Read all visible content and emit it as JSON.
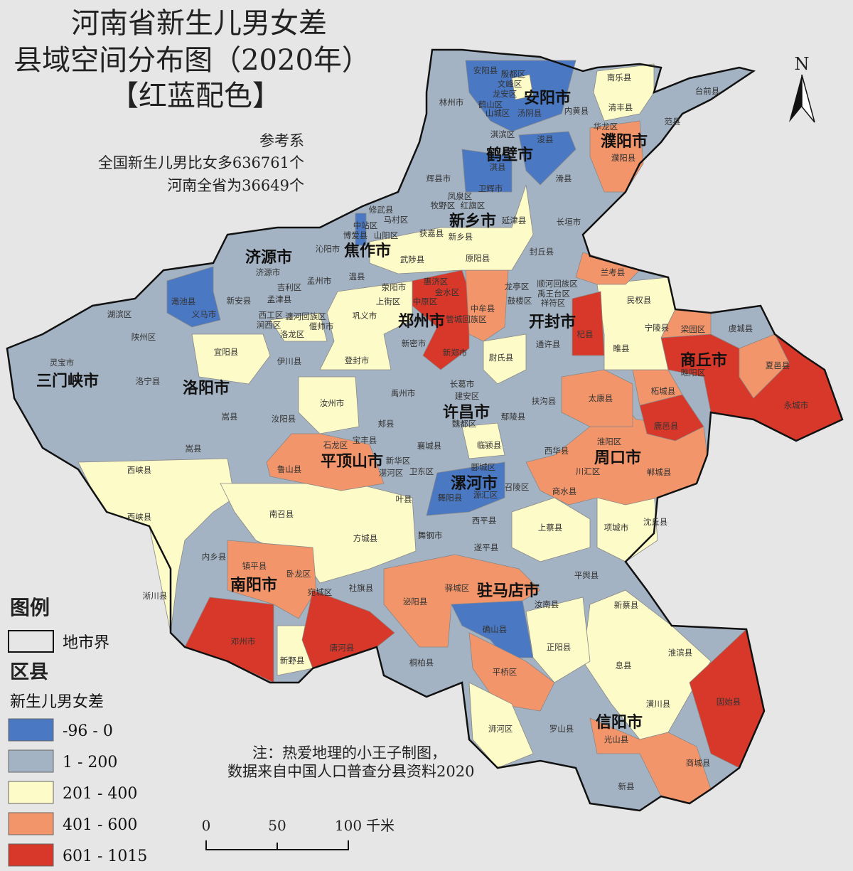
{
  "title": {
    "line1": "河南省新生儿男女差",
    "line2": "县域空间分布图（2020年）",
    "line3": "【红蓝配色】"
  },
  "annotation": {
    "line1": "参考系",
    "line2": "全国新生儿男比女多636761个",
    "line3": "河南全省为36649个"
  },
  "note": {
    "line1": "注：热爱地理的小王子制图，",
    "line2": "数据来自中国人口普查分县资料2020"
  },
  "north_arrow": "N",
  "scale_bar": {
    "ticks": [
      "0",
      "50",
      "100"
    ],
    "unit": "千米"
  },
  "legend": {
    "title": "图例",
    "boundary_label": "地市界",
    "layer_title": "区县",
    "field_title": "新生儿男女差",
    "classes": [
      {
        "label": "-96  -  0",
        "color": "#4a78c2"
      },
      {
        "label": "1  -  200",
        "color": "#a4b3c3"
      },
      {
        "label": "201  -  400",
        "color": "#fdfbc8"
      },
      {
        "label": "401  -  600",
        "color": "#f2956a"
      },
      {
        "label": "601  -  1015",
        "color": "#d7382a"
      }
    ]
  },
  "cities": [
    "安阳市",
    "鹤壁市",
    "濮阳市",
    "新乡市",
    "焦作市",
    "济源市",
    "郑州市",
    "开封市",
    "商丘市",
    "洛阳市",
    "三门峡市",
    "许昌市",
    "平顶山市",
    "漯河市",
    "周口市",
    "南阳市",
    "驻马店市",
    "信阳市"
  ],
  "counties": [
    "林州市",
    "安阳县",
    "殷都区",
    "文峰区",
    "龙安区",
    "鹤山区",
    "山城区",
    "汤阴县",
    "内黄县",
    "淇滨区",
    "浚县",
    "淇县",
    "辉县市",
    "卫辉市",
    "滑县",
    "凤泉区",
    "牧野区",
    "红旗区",
    "延津县",
    "原阳县",
    "获嘉县",
    "新乡县",
    "封丘县",
    "长垣市",
    "南乐县",
    "清丰县",
    "范县",
    "台前县",
    "华龙区",
    "濮阳县",
    "修武县",
    "马村区",
    "中站区",
    "博爱县",
    "山阳区",
    "沁阳市",
    "武陟县",
    "温县",
    "孟州市",
    "济源市",
    "吉利区",
    "孟津县",
    "新安县",
    "渑池县",
    "义马市",
    "湖滨区",
    "陕州区",
    "灵宝市",
    "西工区",
    "瀍河回族区",
    "涧西区",
    "偃师市",
    "洛龙区",
    "宜阳县",
    "伊川县",
    "洛宁县",
    "嵩县",
    "汝阳县",
    "嵩县",
    "西峡县",
    "西峡县",
    "荥阳市",
    "惠济区",
    "金水区",
    "上街区",
    "中原区",
    "巩义市",
    "中牟县",
    "管城回族区",
    "新密市",
    "新郑市",
    "登封市",
    "尉氏县",
    "龙亭区",
    "顺河回族区",
    "禹王台区",
    "祥符区",
    "鼓楼区",
    "通许县",
    "杞县",
    "兰考县",
    "民权县",
    "宁陵县",
    "睢县",
    "梁园区",
    "虞城县",
    "睢阳区",
    "夏邑县",
    "柘城县",
    "永城市",
    "鹿邑县",
    "太康县",
    "扶沟县",
    "鄢陵县",
    "长葛市",
    "建安区",
    "魏都区",
    "禹州市",
    "汝州市",
    "郏县",
    "宝丰县",
    "石龙区",
    "新华区",
    "湛河区",
    "卫东区",
    "襄城县",
    "临颍县",
    "郾城区",
    "源汇区",
    "召陵区",
    "舞阳县",
    "叶县",
    "鲁山县",
    "西华县",
    "淮阳区",
    "川汇区",
    "郸城县",
    "商水县",
    "项城市",
    "沈丘县",
    "上蔡县",
    "西平县",
    "遂平县",
    "舞钢市",
    "方城县",
    "南召县",
    "内乡县",
    "淅川县",
    "镇平县",
    "卧龙区",
    "宛城区",
    "社旗县",
    "泌阳县",
    "驿城区",
    "汝南县",
    "平舆县",
    "新蔡县",
    "确山县",
    "正阳县",
    "邓州市",
    "新野县",
    "唐河县",
    "桐柏县",
    "平桥区",
    "息县",
    "淮滨县",
    "潢川县",
    "固始县",
    "浉河区",
    "罗山县",
    "光山县",
    "商城县",
    "新县"
  ]
}
